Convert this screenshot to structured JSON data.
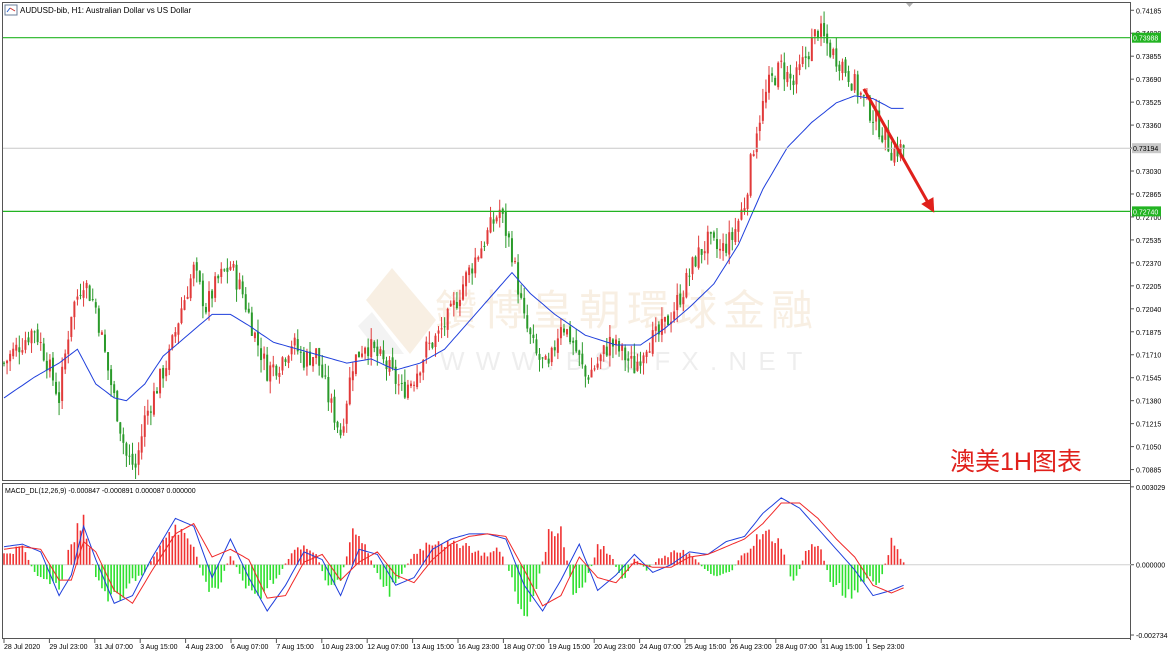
{
  "header": {
    "title": "AUDUSD-bib, H1:  Australian Dollar vs US Dollar",
    "window_icons": [
      "minimize-icon",
      "restore-icon",
      "close-icon"
    ]
  },
  "watermark": {
    "chinese": "鑽博皇朝環球金融",
    "latin": "W W W . B S G F X . N E T"
  },
  "annotation": {
    "text": "澳美1H图表",
    "color": "#e0201b"
  },
  "indicator": {
    "label": "MACD_DL(12,26,9) -0.000847 -0.000891 0.000087 0.000000"
  },
  "colors": {
    "up_candle": "#e13a3a",
    "down_candle": "#2a9a2a",
    "ma_line": "#1f3fdc",
    "level_line": "#22b422",
    "price_line": "#c8c8c8",
    "macd_pos": "#f03232",
    "macd_neg": "#2ee02e",
    "macd_line": "#1f3fdc",
    "signal_line": "#f02828",
    "arrow": "#e0201b"
  },
  "chart_data": [
    {
      "type": "candlestick",
      "symbol": "AUDUSD-bib",
      "timeframe": "H1",
      "y_ticks": [
        0.74185,
        0.7402,
        0.73855,
        0.7369,
        0.73525,
        0.7336,
        0.73195,
        0.7303,
        0.72865,
        0.727,
        0.72535,
        0.7237,
        0.72205,
        0.7204,
        0.71875,
        0.7171,
        0.71545,
        0.7138,
        0.71215,
        0.7105,
        0.70885
      ],
      "ylim": [
        0.7081,
        0.7423
      ],
      "price_labels": {
        "upper": "0.73988",
        "current": "0.73194",
        "lower": "0.72740"
      },
      "levels": [
        0.73988,
        0.7274
      ],
      "current_price": 0.73194,
      "x_tick_labels": [
        "28 Jul 2020",
        "29 Jul 23:00",
        "31 Jul 07:00",
        "3 Aug 15:00",
        "4 Aug 23:00",
        "6 Aug 07:00",
        "7 Aug 15:00",
        "10 Aug 23:00",
        "12 Aug 07:00",
        "13 Aug 15:00",
        "16 Aug 23:00",
        "18 Aug 07:00",
        "19 Aug 15:00",
        "20 Aug 23:00",
        "24 Aug 07:00",
        "25 Aug 15:00",
        "26 Aug 23:00",
        "28 Aug 07:00",
        "31 Aug 15:00",
        "1 Sep 23:00"
      ],
      "close_path": [
        [
          0,
          0.7165
        ],
        [
          5,
          0.7178
        ],
        [
          10,
          0.719
        ],
        [
          14,
          0.7167
        ],
        [
          18,
          0.714
        ],
        [
          22,
          0.7202
        ],
        [
          26,
          0.7225
        ],
        [
          30,
          0.7205
        ],
        [
          34,
          0.716
        ],
        [
          37,
          0.713
        ],
        [
          40,
          0.7098
        ],
        [
          43,
          0.709
        ],
        [
          46,
          0.7125
        ],
        [
          50,
          0.7148
        ],
        [
          54,
          0.717
        ],
        [
          58,
          0.7205
        ],
        [
          62,
          0.7232
        ],
        [
          66,
          0.7205
        ],
        [
          70,
          0.7225
        ],
        [
          74,
          0.7235
        ],
        [
          78,
          0.7215
        ],
        [
          82,
          0.7185
        ],
        [
          86,
          0.716
        ],
        [
          90,
          0.7165
        ],
        [
          94,
          0.718
        ],
        [
          98,
          0.7168
        ],
        [
          102,
          0.7172
        ],
        [
          106,
          0.714
        ],
        [
          110,
          0.7115
        ],
        [
          114,
          0.7165
        ],
        [
          118,
          0.718
        ],
        [
          122,
          0.717
        ],
        [
          126,
          0.716
        ],
        [
          130,
          0.7145
        ],
        [
          134,
          0.7155
        ],
        [
          138,
          0.7175
        ],
        [
          142,
          0.7185
        ],
        [
          146,
          0.72
        ],
        [
          150,
          0.7222
        ],
        [
          154,
          0.724
        ],
        [
          158,
          0.7258
        ],
        [
          162,
          0.7275
        ],
        [
          166,
          0.7245
        ],
        [
          170,
          0.7195
        ],
        [
          174,
          0.717
        ],
        [
          178,
          0.716
        ],
        [
          182,
          0.7195
        ],
        [
          186,
          0.718
        ],
        [
          190,
          0.7155
        ],
        [
          194,
          0.7165
        ],
        [
          198,
          0.718
        ],
        [
          202,
          0.7172
        ],
        [
          206,
          0.7162
        ],
        [
          210,
          0.718
        ],
        [
          214,
          0.7185
        ],
        [
          218,
          0.72
        ],
        [
          222,
          0.7218
        ],
        [
          226,
          0.724
        ],
        [
          230,
          0.7252
        ],
        [
          234,
          0.7245
        ],
        [
          238,
          0.7255
        ],
        [
          242,
          0.728
        ],
        [
          246,
          0.7335
        ],
        [
          250,
          0.7365
        ],
        [
          254,
          0.7378
        ],
        [
          258,
          0.7365
        ],
        [
          262,
          0.7385
        ],
        [
          266,
          0.7405
        ],
        [
          270,
          0.739
        ],
        [
          274,
          0.738
        ],
        [
          278,
          0.7365
        ],
        [
          282,
          0.735
        ],
        [
          286,
          0.7335
        ],
        [
          290,
          0.7318
        ],
        [
          294,
          0.7319
        ]
      ],
      "ma_path": [
        [
          0,
          0.714
        ],
        [
          10,
          0.7155
        ],
        [
          18,
          0.7165
        ],
        [
          24,
          0.7175
        ],
        [
          30,
          0.715
        ],
        [
          36,
          0.714
        ],
        [
          40,
          0.7138
        ],
        [
          46,
          0.715
        ],
        [
          52,
          0.717
        ],
        [
          60,
          0.7185
        ],
        [
          68,
          0.72
        ],
        [
          74,
          0.72
        ],
        [
          80,
          0.7192
        ],
        [
          88,
          0.718
        ],
        [
          96,
          0.7175
        ],
        [
          104,
          0.717
        ],
        [
          112,
          0.7165
        ],
        [
          120,
          0.7168
        ],
        [
          128,
          0.716
        ],
        [
          136,
          0.7165
        ],
        [
          144,
          0.7175
        ],
        [
          152,
          0.7195
        ],
        [
          160,
          0.7215
        ],
        [
          166,
          0.723
        ],
        [
          172,
          0.7215
        ],
        [
          180,
          0.72
        ],
        [
          190,
          0.7185
        ],
        [
          200,
          0.7178
        ],
        [
          208,
          0.7178
        ],
        [
          216,
          0.719
        ],
        [
          224,
          0.7205
        ],
        [
          232,
          0.7222
        ],
        [
          240,
          0.725
        ],
        [
          248,
          0.729
        ],
        [
          256,
          0.732
        ],
        [
          264,
          0.7338
        ],
        [
          272,
          0.7352
        ],
        [
          278,
          0.7357
        ],
        [
          284,
          0.7355
        ],
        [
          290,
          0.7348
        ]
      ],
      "projection_arrow": {
        "from": [
          281,
          0.7362
        ],
        "to": [
          304,
          0.7273
        ]
      }
    },
    {
      "type": "bar",
      "name": "MACD_DL(12,26,9)",
      "y_ticks": [
        0.003029,
        0.0,
        -0.002734
      ],
      "ylim": [
        -0.00285,
        0.0031
      ],
      "histogram_path": [
        [
          0,
          0.0004
        ],
        [
          6,
          0.0007
        ],
        [
          10,
          -0.0003
        ],
        [
          14,
          -0.0007
        ],
        [
          18,
          -0.001
        ],
        [
          22,
          0.001
        ],
        [
          26,
          0.0016
        ],
        [
          30,
          -0.0005
        ],
        [
          34,
          -0.0012
        ],
        [
          38,
          -0.0015
        ],
        [
          42,
          -0.0006
        ],
        [
          46,
          -0.0003
        ],
        [
          50,
          0.0006
        ],
        [
          54,
          0.0012
        ],
        [
          58,
          0.0015
        ],
        [
          62,
          0.0006
        ],
        [
          66,
          -0.0008
        ],
        [
          70,
          -0.001
        ],
        [
          74,
          0.0004
        ],
        [
          78,
          -0.0006
        ],
        [
          82,
          -0.0014
        ],
        [
          86,
          -0.0008
        ],
        [
          90,
          -0.0004
        ],
        [
          94,
          0.0005
        ],
        [
          98,
          0.0008
        ],
        [
          102,
          0.0004
        ],
        [
          106,
          -0.0008
        ],
        [
          110,
          -0.0006
        ],
        [
          114,
          0.0014
        ],
        [
          118,
          0.0008
        ],
        [
          122,
          -0.0004
        ],
        [
          126,
          -0.001
        ],
        [
          130,
          -0.0003
        ],
        [
          134,
          0.0004
        ],
        [
          138,
          0.0008
        ],
        [
          142,
          0.001
        ],
        [
          146,
          0.0007
        ],
        [
          150,
          0.0009
        ],
        [
          154,
          0.0005
        ],
        [
          158,
          0.0004
        ],
        [
          162,
          0.0006
        ],
        [
          166,
          -0.0006
        ],
        [
          170,
          -0.002
        ],
        [
          174,
          -0.001
        ],
        [
          178,
          0.0012
        ],
        [
          182,
          0.0015
        ],
        [
          186,
          -0.0012
        ],
        [
          190,
          -0.0008
        ],
        [
          194,
          0.0007
        ],
        [
          198,
          0.0005
        ],
        [
          202,
          -0.0007
        ],
        [
          206,
          0.0003
        ],
        [
          210,
          -0.0002
        ],
        [
          214,
          0.0002
        ],
        [
          218,
          0.0004
        ],
        [
          222,
          0.0006
        ],
        [
          226,
          0.0002
        ],
        [
          230,
          -0.0003
        ],
        [
          234,
          -0.0004
        ],
        [
          238,
          -0.0002
        ],
        [
          242,
          0.0005
        ],
        [
          246,
          0.001
        ],
        [
          250,
          0.0012
        ],
        [
          254,
          0.0008
        ],
        [
          258,
          -0.0008
        ],
        [
          262,
          0.0005
        ],
        [
          266,
          0.0009
        ],
        [
          270,
          -0.0006
        ],
        [
          274,
          -0.001
        ],
        [
          278,
          -0.0012
        ],
        [
          282,
          -0.0005
        ],
        [
          286,
          -0.0008
        ],
        [
          290,
          0.0009
        ],
        [
          294,
          0.0001
        ]
      ],
      "macd_path": [
        [
          0,
          0.0007
        ],
        [
          6,
          0.0008
        ],
        [
          12,
          0.0005
        ],
        [
          18,
          -0.0012
        ],
        [
          22,
          -0.0004
        ],
        [
          26,
          0.0015
        ],
        [
          30,
          0.0002
        ],
        [
          36,
          -0.0015
        ],
        [
          42,
          -0.0012
        ],
        [
          48,
          0.0002
        ],
        [
          56,
          0.0018
        ],
        [
          62,
          0.0015
        ],
        [
          68,
          -0.0005
        ],
        [
          74,
          0.001
        ],
        [
          80,
          -0.0005
        ],
        [
          86,
          -0.0018
        ],
        [
          92,
          -0.0008
        ],
        [
          98,
          0.0005
        ],
        [
          104,
          0.0002
        ],
        [
          110,
          -0.0012
        ],
        [
          116,
          0.0006
        ],
        [
          122,
          0.0004
        ],
        [
          128,
          -0.0008
        ],
        [
          134,
          -0.0005
        ],
        [
          140,
          0.0006
        ],
        [
          146,
          0.001
        ],
        [
          152,
          0.0012
        ],
        [
          158,
          0.0012
        ],
        [
          164,
          0.001
        ],
        [
          170,
          -0.0008
        ],
        [
          176,
          -0.0018
        ],
        [
          182,
          -0.0006
        ],
        [
          188,
          0.0008
        ],
        [
          194,
          -0.001
        ],
        [
          200,
          -0.0004
        ],
        [
          206,
          0.0004
        ],
        [
          212,
          -0.0003
        ],
        [
          218,
          0.0
        ],
        [
          224,
          0.0005
        ],
        [
          230,
          0.0004
        ],
        [
          236,
          0.0009
        ],
        [
          242,
          0.0011
        ],
        [
          248,
          0.002
        ],
        [
          254,
          0.0026
        ],
        [
          260,
          0.0022
        ],
        [
          266,
          0.0014
        ],
        [
          272,
          0.0006
        ],
        [
          278,
          -0.0002
        ],
        [
          284,
          -0.0012
        ],
        [
          290,
          -0.001
        ],
        [
          294,
          -0.0008
        ]
      ],
      "signal_path": [
        [
          0,
          0.0006
        ],
        [
          6,
          0.0007
        ],
        [
          12,
          0.0006
        ],
        [
          18,
          -0.0006
        ],
        [
          22,
          -0.0006
        ],
        [
          26,
          0.0009
        ],
        [
          30,
          0.0005
        ],
        [
          36,
          -0.001
        ],
        [
          42,
          -0.0015
        ],
        [
          48,
          -0.0003
        ],
        [
          56,
          0.0012
        ],
        [
          62,
          0.0016
        ],
        [
          68,
          0.0003
        ],
        [
          74,
          0.0006
        ],
        [
          80,
          0.0002
        ],
        [
          86,
          -0.0013
        ],
        [
          92,
          -0.0012
        ],
        [
          98,
          0.0001
        ],
        [
          104,
          0.0004
        ],
        [
          110,
          -0.0006
        ],
        [
          116,
          0.0001
        ],
        [
          122,
          0.0005
        ],
        [
          128,
          -0.0004
        ],
        [
          134,
          -0.0007
        ],
        [
          140,
          0.0002
        ],
        [
          146,
          0.0008
        ],
        [
          152,
          0.0011
        ],
        [
          158,
          0.0012
        ],
        [
          164,
          0.0011
        ],
        [
          170,
          -0.0002
        ],
        [
          176,
          -0.0016
        ],
        [
          182,
          -0.0012
        ],
        [
          188,
          0.0003
        ],
        [
          194,
          -0.0005
        ],
        [
          200,
          -0.0007
        ],
        [
          206,
          0.0001
        ],
        [
          212,
          -0.0001
        ],
        [
          218,
          -0.0001
        ],
        [
          224,
          0.0003
        ],
        [
          230,
          0.0004
        ],
        [
          236,
          0.0007
        ],
        [
          242,
          0.001
        ],
        [
          248,
          0.0016
        ],
        [
          254,
          0.0024
        ],
        [
          260,
          0.0024
        ],
        [
          266,
          0.0018
        ],
        [
          272,
          0.001
        ],
        [
          278,
          0.0003
        ],
        [
          284,
          -0.0008
        ],
        [
          290,
          -0.0011
        ],
        [
          294,
          -0.0009
        ]
      ]
    }
  ]
}
